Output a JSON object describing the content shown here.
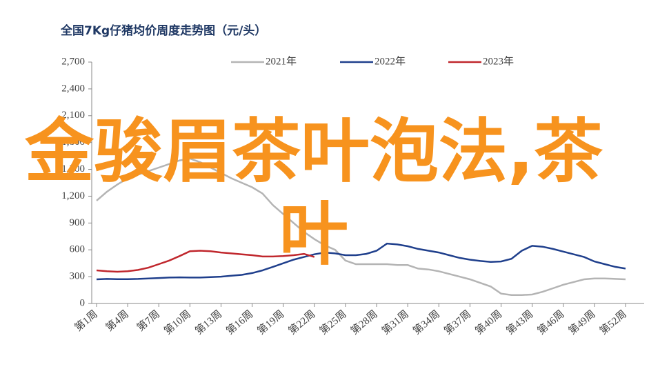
{
  "chart_data": {
    "type": "line",
    "title": "全国7Kg仔猪均价周度走势图（元/头）",
    "categories": [
      "第1周",
      null,
      null,
      "第4周",
      null,
      null,
      "第7周",
      null,
      null,
      "第10周",
      null,
      null,
      "第13周",
      null,
      null,
      "第16周",
      null,
      null,
      "第19周",
      null,
      null,
      "第22周",
      null,
      null,
      "第25周",
      null,
      null,
      "第28周",
      null,
      null,
      "第31周",
      null,
      null,
      "第34周",
      null,
      null,
      "第37周",
      null,
      null,
      "第40周",
      null,
      null,
      "第43周",
      null,
      null,
      "第46周",
      null,
      null,
      "第49周",
      null,
      null,
      "第52周"
    ],
    "series": [
      {
        "name": "2021年",
        "color": "#b4b4b4",
        "values": [
          1150,
          1250,
          1330,
          1400,
          1440,
          1480,
          1520,
          1560,
          1600,
          1620,
          1580,
          1520,
          1460,
          1400,
          1350,
          1300,
          1230,
          1100,
          1000,
          900,
          800,
          720,
          650,
          600,
          480,
          440,
          440,
          440,
          440,
          430,
          430,
          390,
          380,
          360,
          330,
          300,
          270,
          230,
          190,
          110,
          95,
          95,
          100,
          130,
          170,
          210,
          240,
          270,
          280,
          280,
          275,
          270
        ]
      },
      {
        "name": "2022年",
        "color": "#1f3f8c",
        "values": [
          270,
          275,
          272,
          272,
          275,
          280,
          285,
          290,
          292,
          290,
          290,
          295,
          300,
          310,
          320,
          340,
          370,
          410,
          450,
          490,
          520,
          550,
          570,
          560,
          540,
          540,
          555,
          590,
          670,
          660,
          640,
          610,
          590,
          570,
          540,
          510,
          490,
          475,
          465,
          470,
          500,
          590,
          645,
          635,
          610,
          580,
          550,
          520,
          470,
          440,
          410,
          390
        ]
      },
      {
        "name": "2023年",
        "color": "#c0272d",
        "values": [
          370,
          360,
          355,
          360,
          375,
          400,
          440,
          480,
          530,
          585,
          590,
          585,
          570,
          560,
          550,
          540,
          525,
          525,
          530,
          540,
          555,
          520,
          null,
          null,
          null,
          null,
          null,
          null,
          null,
          null,
          null,
          null,
          null,
          null,
          null,
          null,
          null,
          null,
          null,
          null,
          null,
          null,
          null,
          null,
          null,
          null,
          null,
          null,
          null,
          null,
          null,
          null
        ]
      }
    ],
    "ylim": [
      0,
      2700
    ],
    "yticks": [
      0,
      300,
      600,
      900,
      {
        "value": 1200,
        "label": "1,200"
      },
      {
        "value": 1500,
        "label": "1,500"
      },
      {
        "value": 1800,
        "label": "1,800"
      },
      {
        "value": 2100,
        "label": "2,100"
      },
      {
        "value": 2400,
        "label": "2,400"
      },
      {
        "value": 2700,
        "label": "2,700"
      }
    ],
    "legend": "top",
    "overlay_text": "金骏眉茶叶泡法,茶叶"
  }
}
